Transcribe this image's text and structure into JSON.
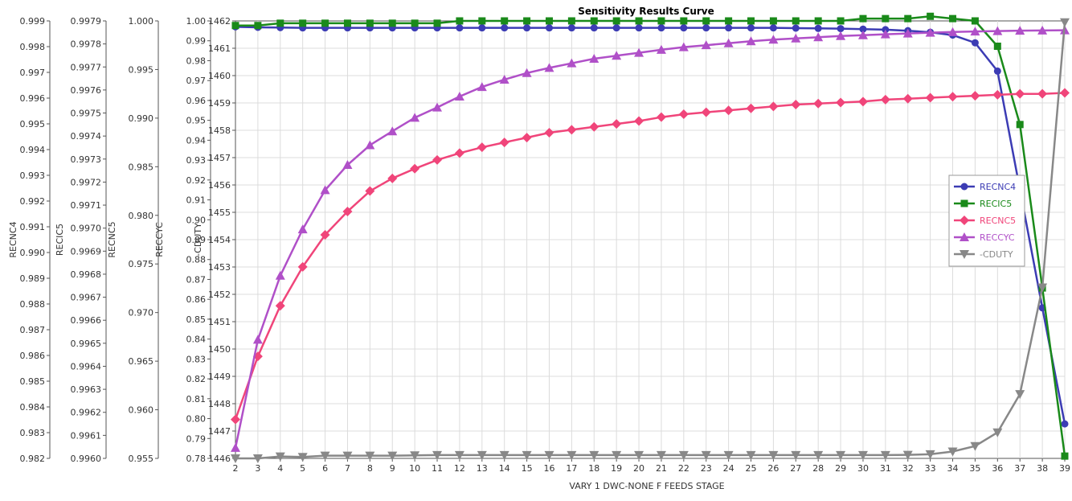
{
  "chart_data": {
    "type": "line",
    "title": "Sensitivity Results Curve",
    "xlabel": "VARY   1 DWC-NONE F FEEDS STAGE",
    "x": [
      2,
      3,
      4,
      5,
      6,
      7,
      8,
      9,
      10,
      11,
      12,
      13,
      14,
      15,
      16,
      17,
      18,
      19,
      20,
      21,
      22,
      23,
      24,
      25,
      26,
      27,
      28,
      29,
      30,
      31,
      32,
      33,
      34,
      35,
      36,
      37,
      38,
      39
    ],
    "xlim": [
      2,
      39
    ],
    "grid": true,
    "legend_position": "right",
    "axes": [
      {
        "id": "recnc4",
        "label": "RECNC4",
        "range": [
          0.982,
          0.999
        ],
        "ticks": [
          "0.982",
          "0.983",
          "0.984",
          "0.985",
          "0.986",
          "0.987",
          "0.988",
          "0.989",
          "0.990",
          "0.991",
          "0.992",
          "0.993",
          "0.994",
          "0.995",
          "0.996",
          "0.997",
          "0.998",
          "0.999"
        ]
      },
      {
        "id": "recic5",
        "label": "RECIC5",
        "range": [
          0.996,
          0.9979
        ],
        "ticks": [
          "0.9960",
          "0.9961",
          "0.9962",
          "0.9963",
          "0.9964",
          "0.9965",
          "0.9966",
          "0.9967",
          "0.9968",
          "0.9969",
          "0.9970",
          "0.9971",
          "0.9972",
          "0.9973",
          "0.9974",
          "0.9975",
          "0.9976",
          "0.9977",
          "0.9978",
          "0.9979"
        ]
      },
      {
        "id": "recnc5",
        "label": "RECNC5",
        "range": [
          0.955,
          1.0
        ],
        "ticks": [
          "0.955",
          "0.960",
          "0.965",
          "0.970",
          "0.975",
          "0.980",
          "0.985",
          "0.990",
          "0.995",
          "1.000"
        ]
      },
      {
        "id": "reccyc",
        "label": "RECCYC",
        "range": [
          0.78,
          1.0
        ],
        "ticks": [
          "0.78",
          "0.79",
          "0.80",
          "0.81",
          "0.82",
          "0.83",
          "0.84",
          "0.85",
          "0.86",
          "0.87",
          "0.88",
          "0.89",
          "0.90",
          "0.91",
          "0.92",
          "0.93",
          "0.94",
          "0.95",
          "0.96",
          "0.97",
          "0.98",
          "0.99",
          "1.00"
        ]
      },
      {
        "id": "cduty",
        "label": "-CDUTY",
        "range": [
          1446,
          1462
        ],
        "ticks": [
          "1446",
          "1447",
          "1448",
          "1449",
          "1450",
          "1451",
          "1452",
          "1453",
          "1454",
          "1455",
          "1456",
          "1457",
          "1458",
          "1459",
          "1460",
          "1461",
          "1462"
        ]
      }
    ],
    "series": [
      {
        "name": "RECNC4",
        "axis": "recnc4",
        "color": "#3c3cb4",
        "marker": "circle",
        "values": [
          0.99877,
          0.99875,
          0.99874,
          0.99873,
          0.99873,
          0.99873,
          0.99873,
          0.99873,
          0.99873,
          0.99873,
          0.99873,
          0.99873,
          0.99873,
          0.99873,
          0.99873,
          0.99873,
          0.99873,
          0.99873,
          0.99873,
          0.99873,
          0.99873,
          0.99873,
          0.99873,
          0.99873,
          0.99873,
          0.99872,
          0.99871,
          0.9987,
          0.99868,
          0.99866,
          0.99862,
          0.99856,
          0.99845,
          0.99815,
          0.99705,
          0.99245,
          0.98785,
          0.98334
        ]
      },
      {
        "name": "RECIC5",
        "axis": "recic5",
        "color": "#1a8a1a",
        "marker": "square",
        "values": [
          0.99788,
          0.99788,
          0.99789,
          0.99789,
          0.99789,
          0.99789,
          0.99789,
          0.99789,
          0.99789,
          0.99789,
          0.9979,
          0.9979,
          0.9979,
          0.9979,
          0.9979,
          0.9979,
          0.9979,
          0.9979,
          0.9979,
          0.9979,
          0.9979,
          0.9979,
          0.9979,
          0.9979,
          0.9979,
          0.9979,
          0.9979,
          0.9979,
          0.99791,
          0.99791,
          0.99791,
          0.99792,
          0.99791,
          0.9979,
          0.99779,
          0.99745,
          0.99674,
          0.99601
        ]
      },
      {
        "name": "RECNC5",
        "axis": "recnc5",
        "color": "#f0457a",
        "marker": "diamond",
        "values": [
          0.959,
          0.9655,
          0.9707,
          0.9747,
          0.978,
          0.9804,
          0.9825,
          0.9838,
          0.9848,
          0.9857,
          0.9864,
          0.987,
          0.9875,
          0.988,
          0.9885,
          0.9888,
          0.9891,
          0.9894,
          0.9897,
          0.9901,
          0.9904,
          0.9906,
          0.9908,
          0.991,
          0.9912,
          0.9914,
          0.9915,
          0.9916,
          0.9917,
          0.9919,
          0.992,
          0.9921,
          0.9922,
          0.9923,
          0.9924,
          0.9925,
          0.9925,
          0.9926
        ]
      },
      {
        "name": "RECCYC",
        "axis": "reccyc",
        "color": "#b050c8",
        "marker": "triangle-up",
        "values": [
          0.7853,
          0.8397,
          0.8719,
          0.8952,
          0.9149,
          0.9276,
          0.9375,
          0.9445,
          0.9513,
          0.9565,
          0.962,
          0.9668,
          0.9705,
          0.9738,
          0.9764,
          0.9787,
          0.981,
          0.9825,
          0.984,
          0.9855,
          0.9868,
          0.9878,
          0.9888,
          0.9898,
          0.9906,
          0.9912,
          0.9918,
          0.9924,
          0.9928,
          0.9933,
          0.9937,
          0.9941,
          0.9944,
          0.9947,
          0.9949,
          0.9951,
          0.9952,
          0.9953
        ]
      },
      {
        "name": "-CDUTY",
        "axis": "cduty",
        "color": "#888888",
        "marker": "triangle-down",
        "values": [
          1446,
          1446,
          1446.07,
          1446.05,
          1446.1,
          1446.1,
          1446.1,
          1446.1,
          1446.11,
          1446.12,
          1446.12,
          1446.12,
          1446.12,
          1446.12,
          1446.12,
          1446.12,
          1446.12,
          1446.12,
          1446.12,
          1446.12,
          1446.12,
          1446.12,
          1446.12,
          1446.12,
          1446.12,
          1446.12,
          1446.12,
          1446.12,
          1446.12,
          1446.12,
          1446.13,
          1446.15,
          1446.25,
          1446.45,
          1446.95,
          1448.35,
          1452.25,
          1461.95
        ]
      }
    ]
  }
}
